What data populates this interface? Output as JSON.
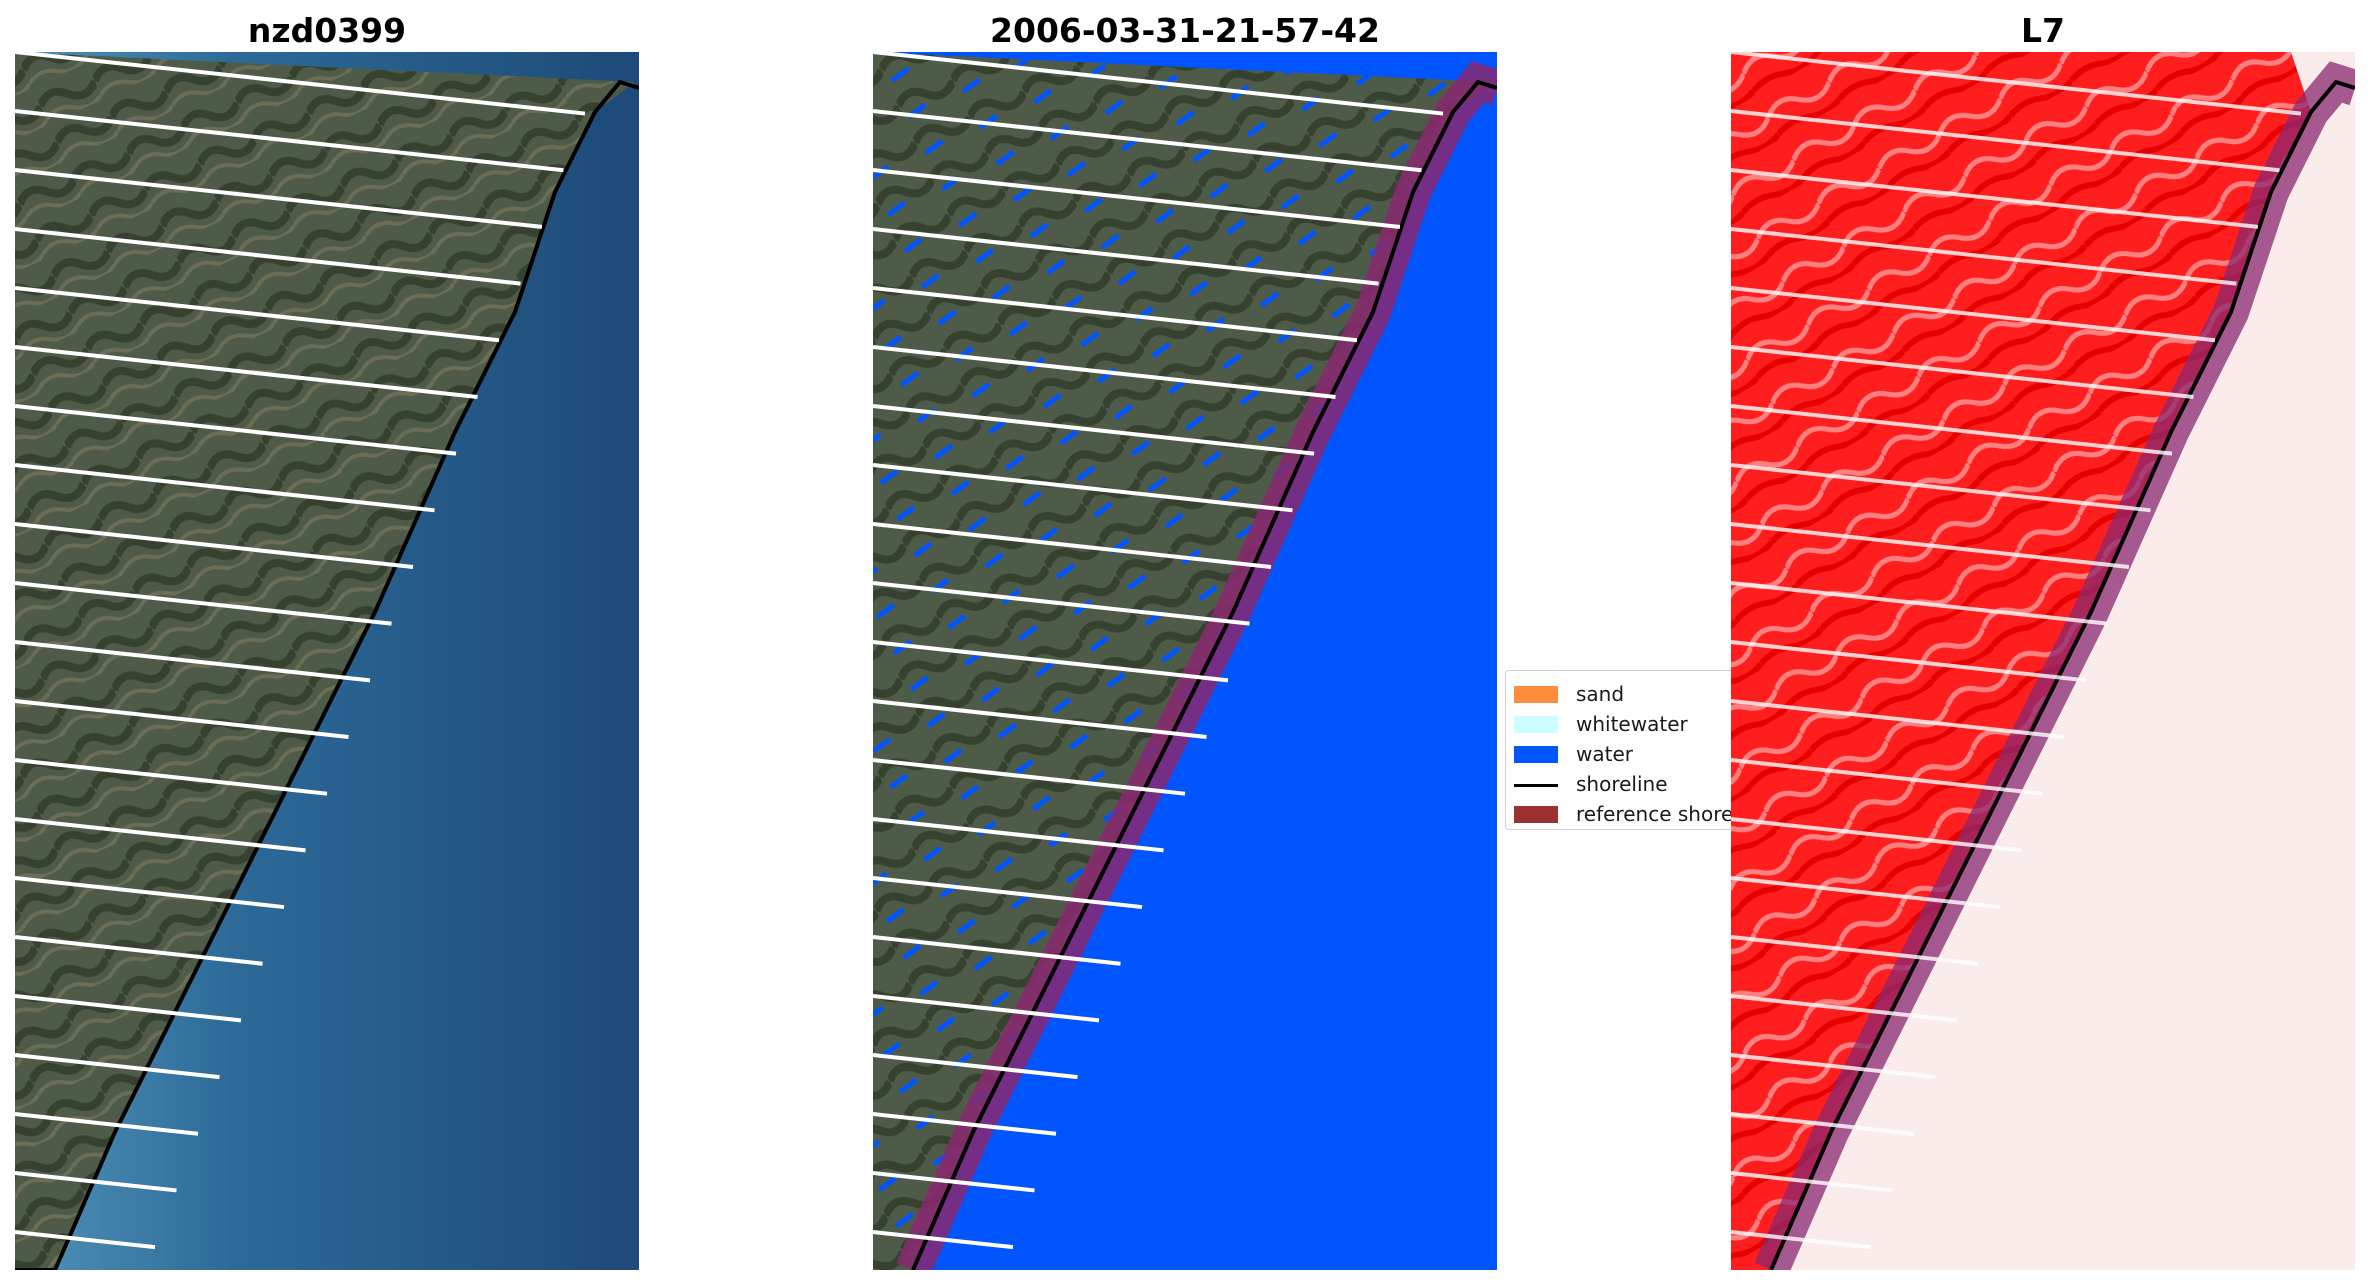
{
  "panels": [
    {
      "title": "nzd0399"
    },
    {
      "title": "2006-03-31-21-57-42"
    },
    {
      "title": "L7"
    }
  ],
  "legend": {
    "items": [
      {
        "label": "sand",
        "color": "#ff8c3c"
      },
      {
        "label": "whitewater",
        "color": "#ccffff"
      },
      {
        "label": "water",
        "color": "#0055ff"
      },
      {
        "label": "shoreline",
        "color": "#000000"
      },
      {
        "label": "reference shoreline",
        "color": "#9b3030"
      }
    ]
  },
  "colors": {
    "land": "#4e5a48",
    "ocean": "#1e4f7e",
    "nearshore": "#4f93b8",
    "water_class": "#0055ff",
    "reference_buffer": "#8a2870",
    "mndwi_land": "#ff2020",
    "mndwi_water": "#fbecec"
  }
}
